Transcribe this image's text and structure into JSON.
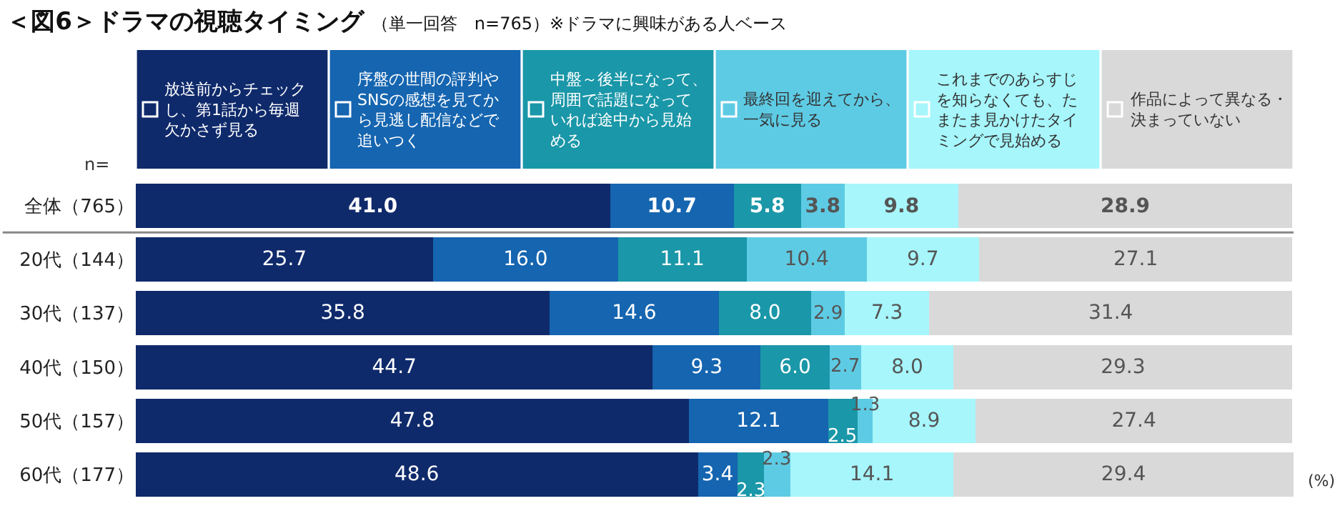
{
  "chart_data": {
    "type": "bar",
    "orientation": "horizontal",
    "stacked": true,
    "title": "＜図6＞ドラマの視聴タイミング",
    "subtitle": "（単一回答　n=765）※ドラマに興味がある人ベース",
    "categories": [
      "全体（765）",
      "20代（144）",
      "30代（137）",
      "40代（150）",
      "50代（157）",
      "60代（177）"
    ],
    "series": [
      {
        "name": "放送前からチェックし、第1話から毎週欠かさず見る",
        "color": "#0f2a6b",
        "values": [
          41.0,
          25.7,
          35.8,
          44.7,
          47.8,
          48.6
        ],
        "value_labels": [
          "41.0",
          "25.7",
          "35.8",
          "44.7",
          "47.8",
          "48.6"
        ]
      },
      {
        "name": "序盤の世間の評判やSNSの感想を見てから見逃し配信などで追いつく",
        "color": "#1565b0",
        "values": [
          10.7,
          16.0,
          14.6,
          9.3,
          12.1,
          3.4
        ],
        "value_labels": [
          "10.7",
          "16.0",
          "14.6",
          "9.3",
          "12.1",
          "3.4"
        ]
      },
      {
        "name": "中盤～後半になって、周囲で話題になっていれば途中から見始める",
        "color": "#1a97a8",
        "values": [
          5.8,
          11.1,
          8.0,
          6.0,
          2.5,
          2.3
        ],
        "value_labels": [
          "5.8",
          "11.1",
          "8.0",
          "6.0",
          "2.5",
          "2.3"
        ]
      },
      {
        "name": "最終回を迎えてから、一気に見る",
        "color": "#5ecbe4",
        "values": [
          3.8,
          10.4,
          2.9,
          2.7,
          1.3,
          2.3
        ],
        "value_labels": [
          "3.8",
          "10.4",
          "2.9",
          "2.7",
          "1.3",
          "2.3"
        ]
      },
      {
        "name": "これまでのあらすじを知らなくても、たまたま見かけたタイミングで見始める",
        "color": "#a6f6fb",
        "values": [
          9.8,
          9.7,
          7.3,
          8.0,
          8.9,
          14.1
        ],
        "value_labels": [
          "9.8",
          "9.7",
          "7.3",
          "8.0",
          "8.9",
          "14.1"
        ]
      },
      {
        "name": "作品によって異なる・決まっていない",
        "color": "#d9d9d9",
        "values": [
          28.9,
          27.1,
          31.4,
          29.3,
          27.4,
          29.4
        ],
        "value_labels": [
          "28.9",
          "27.1",
          "31.4",
          "29.3",
          "27.4",
          "29.4"
        ]
      }
    ],
    "xlim": [
      0,
      100.1
    ],
    "tick_labels": "y",
    "legend": "top",
    "annotations": [
      "n=",
      "(%)"
    ]
  }
}
